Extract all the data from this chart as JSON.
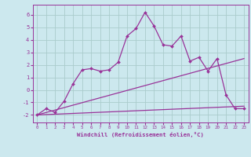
{
  "xlabel": "Windchill (Refroidissement éolien,°C)",
  "background_color": "#cce8ee",
  "grid_color": "#aacccc",
  "line_color": "#993399",
  "x_ticks": [
    0,
    1,
    2,
    3,
    4,
    5,
    6,
    7,
    8,
    9,
    10,
    11,
    12,
    13,
    14,
    15,
    16,
    17,
    18,
    19,
    20,
    21,
    22,
    23
  ],
  "yticks": [
    -2,
    -1,
    0,
    1,
    2,
    3,
    4,
    5,
    6
  ],
  "ylim": [
    -2.6,
    6.8
  ],
  "xlim": [
    -0.5,
    23.5
  ],
  "series1_x": [
    0,
    1,
    2,
    3,
    4,
    5,
    6,
    7,
    8,
    9,
    10,
    11,
    12,
    13,
    14,
    15,
    16,
    17,
    18,
    19,
    20,
    21,
    22,
    23
  ],
  "series1_y": [
    -2.0,
    -1.5,
    -1.8,
    -0.9,
    0.5,
    1.6,
    1.7,
    1.5,
    1.6,
    2.2,
    4.3,
    4.9,
    6.2,
    5.1,
    3.6,
    3.5,
    4.3,
    2.3,
    2.6,
    1.5,
    2.5,
    -0.4,
    -1.5,
    -1.5
  ],
  "series2_x": [
    0,
    23
  ],
  "series2_y": [
    -2.0,
    -1.3
  ],
  "series3_x": [
    0,
    23
  ],
  "series3_y": [
    -2.0,
    2.5
  ]
}
